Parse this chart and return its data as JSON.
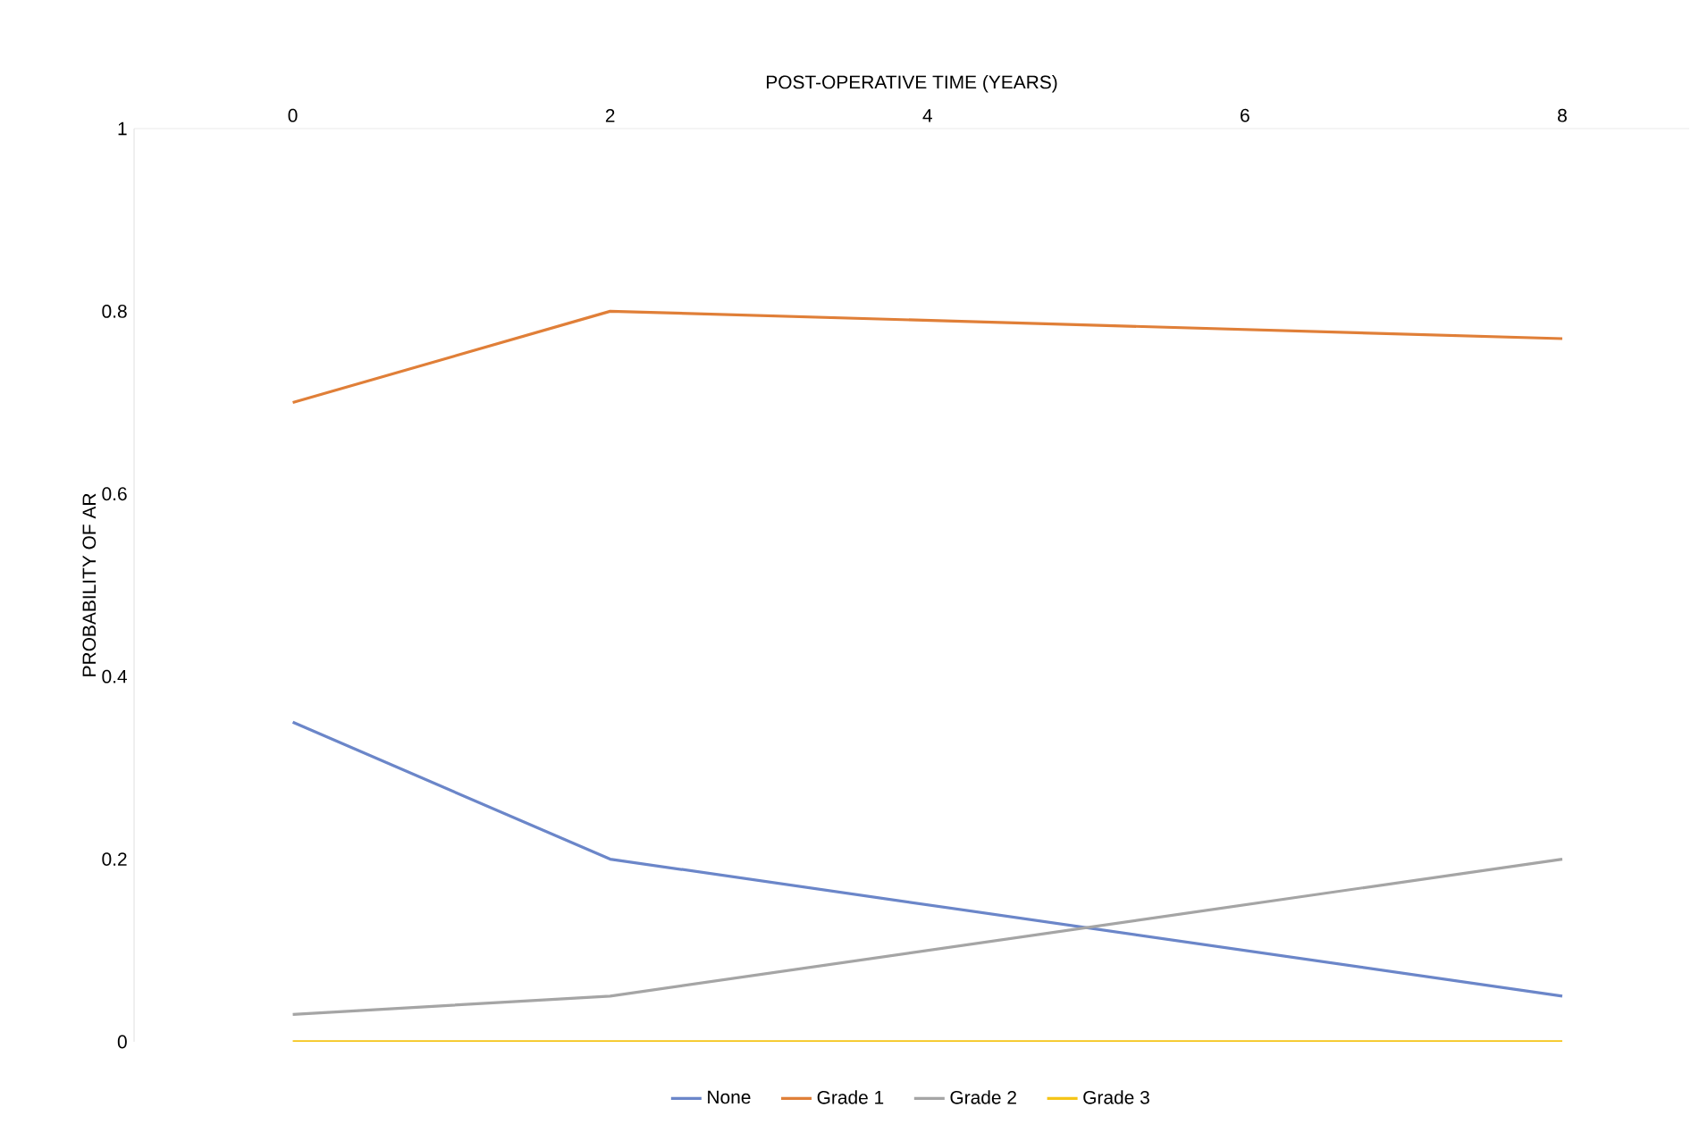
{
  "chart_data": {
    "type": "line",
    "xlabel": "POST-OPERATIVE TIME (YEARS)",
    "ylabel": "PROBABILITY OF AR",
    "xlim": [
      -1,
      8.8
    ],
    "xticks": [
      0,
      2,
      4,
      6,
      8
    ],
    "ylim": [
      0,
      1
    ],
    "yticks": [
      0,
      0.2,
      0.4,
      0.6,
      0.8,
      1
    ],
    "x": [
      0,
      2,
      8
    ],
    "series": [
      {
        "name": "None",
        "color": "#6b86c9",
        "values": [
          0.35,
          0.2,
          0.05
        ]
      },
      {
        "name": "Grade 1",
        "color": "#e07f38",
        "values": [
          0.7,
          0.8,
          0.77
        ]
      },
      {
        "name": "Grade 2",
        "color": "#a5a5a5",
        "values": [
          0.03,
          0.05,
          0.2
        ]
      },
      {
        "name": "Grade 3",
        "color": "#f5c518",
        "values": [
          0,
          0,
          0
        ]
      }
    ],
    "legend": "bottom",
    "grid": false,
    "marker": "none",
    "line_style": "solid"
  }
}
